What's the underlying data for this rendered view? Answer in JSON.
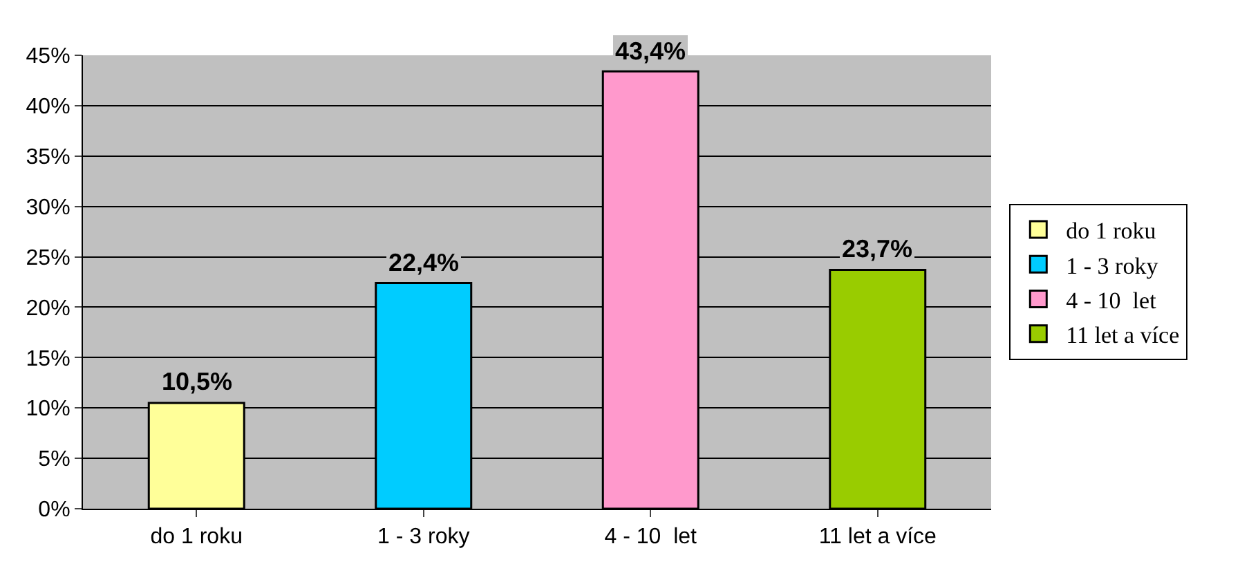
{
  "chart_data": {
    "type": "bar",
    "categories": [
      "do 1 roku",
      "1 - 3 roky",
      "4 - 10  let",
      "11 let a více"
    ],
    "series": [
      {
        "name": "do 1 roku",
        "color": "#ffff99",
        "values": [
          10.5,
          null,
          null,
          null
        ],
        "value_labels": [
          "10,5%",
          null,
          null,
          null
        ]
      },
      {
        "name": "1 - 3 roky",
        "color": "#00ccff",
        "values": [
          null,
          22.4,
          null,
          null
        ],
        "value_labels": [
          null,
          "22,4%",
          null,
          null
        ]
      },
      {
        "name": "4 - 10  let",
        "color": "#ff99cc",
        "values": [
          null,
          null,
          43.4,
          null
        ],
        "value_labels": [
          null,
          null,
          "43,4%",
          null
        ]
      },
      {
        "name": "11 let a více",
        "color": "#99cc00",
        "values": [
          null,
          null,
          null,
          23.7
        ],
        "value_labels": [
          null,
          null,
          null,
          "23,7%"
        ]
      }
    ],
    "ylim": [
      0,
      45
    ],
    "yticks": [
      {
        "value": 0,
        "label": "0%"
      },
      {
        "value": 5,
        "label": "5%"
      },
      {
        "value": 10,
        "label": "10%"
      },
      {
        "value": 15,
        "label": "15%"
      },
      {
        "value": 20,
        "label": "20%"
      },
      {
        "value": 25,
        "label": "25%"
      },
      {
        "value": 30,
        "label": "30%"
      },
      {
        "value": 35,
        "label": "35%"
      },
      {
        "value": 40,
        "label": "40%"
      },
      {
        "value": 45,
        "label": "45%"
      }
    ],
    "grid": "y",
    "legend": "right"
  }
}
